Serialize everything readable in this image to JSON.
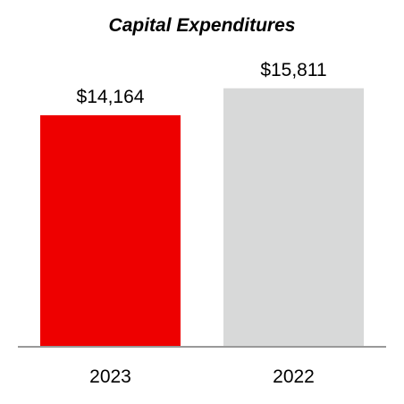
{
  "chart_data": {
    "type": "bar",
    "title": "Capital Expenditures",
    "categories": [
      "2023",
      "2022"
    ],
    "values": [
      14164,
      15811
    ],
    "data_labels": [
      "$14,164",
      "$15,811"
    ],
    "colors": [
      "#ee0000",
      "#d8d9d9"
    ],
    "xlabel": "",
    "ylabel": "",
    "ylim": [
      0,
      16400
    ],
    "grid": false,
    "legend": "none"
  }
}
